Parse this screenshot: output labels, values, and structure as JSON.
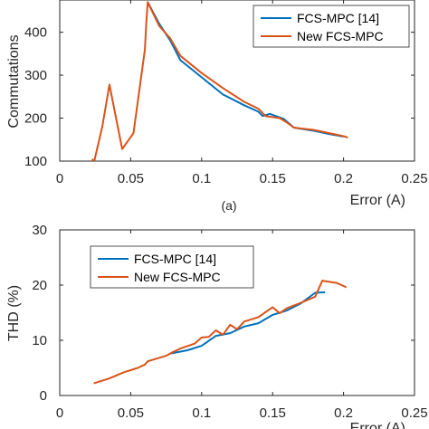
{
  "chart_data": [
    {
      "type": "line",
      "panel_label": "(a)",
      "xlabel": "Error (A)",
      "ylabel": "Commutations",
      "xlim": [
        0,
        0.25
      ],
      "ylim": [
        100,
        475
      ],
      "xticks": [
        "0",
        "0.05",
        "0.1",
        "0.15",
        "0.2",
        "0.25"
      ],
      "yticks": [
        "100",
        "200",
        "300",
        "400"
      ],
      "grid": false,
      "legend_position": "top-right",
      "series": [
        {
          "name": "FCS-MPC [14]",
          "color": "#0072BD",
          "x": [
            0.062,
            0.07,
            0.078,
            0.085,
            0.1,
            0.115,
            0.13,
            0.14,
            0.143,
            0.148,
            0.158,
            0.165,
            0.18,
            0.19,
            0.2
          ],
          "y": [
            470,
            420,
            380,
            335,
            295,
            255,
            230,
            215,
            205,
            210,
            198,
            178,
            170,
            163,
            157
          ]
        },
        {
          "name": "New FCS-MPC",
          "color": "#D95319",
          "x": [
            0.023,
            0.024,
            0.03,
            0.035,
            0.04,
            0.044,
            0.052,
            0.06,
            0.061,
            0.062,
            0.07,
            0.078,
            0.085,
            0.1,
            0.115,
            0.13,
            0.14,
            0.145,
            0.155,
            0.16,
            0.165,
            0.18,
            0.19,
            0.2,
            0.203
          ],
          "y": [
            105,
            95,
            180,
            278,
            195,
            128,
            165,
            360,
            420,
            470,
            415,
            385,
            345,
            305,
            270,
            238,
            222,
            205,
            200,
            190,
            178,
            172,
            165,
            158,
            155
          ]
        }
      ]
    },
    {
      "type": "line",
      "xlabel": "Error (A)",
      "ylabel": "THD (%)",
      "xlim": [
        0,
        0.25
      ],
      "ylim": [
        0,
        30
      ],
      "xticks": [
        "0",
        "0.05",
        "0.1",
        "0.15",
        "0.2",
        "0.25"
      ],
      "yticks": [
        "0",
        "10",
        "20",
        "30"
      ],
      "grid": false,
      "legend_position": "top-left",
      "series": [
        {
          "name": "FCS-MPC [14]",
          "color": "#0072BD",
          "x": [
            0.078,
            0.09,
            0.1,
            0.11,
            0.12,
            0.13,
            0.14,
            0.15,
            0.16,
            0.17,
            0.18,
            0.187
          ],
          "y": [
            7.6,
            8.2,
            9.0,
            10.8,
            11.3,
            12.5,
            13.1,
            14.6,
            15.4,
            16.7,
            18.6,
            18.7
          ]
        },
        {
          "name": "New FCS-MPC",
          "color": "#D95319",
          "x": [
            0.024,
            0.035,
            0.045,
            0.055,
            0.06,
            0.062,
            0.075,
            0.08,
            0.085,
            0.095,
            0.1,
            0.105,
            0.11,
            0.115,
            0.12,
            0.125,
            0.13,
            0.14,
            0.15,
            0.155,
            0.16,
            0.17,
            0.18,
            0.185,
            0.195,
            0.202
          ],
          "y": [
            2.2,
            3.1,
            4.2,
            5.0,
            5.6,
            6.2,
            7.2,
            7.9,
            8.5,
            9.4,
            10.5,
            10.6,
            11.8,
            11.0,
            12.8,
            12.0,
            13.4,
            14.2,
            16.0,
            14.9,
            15.8,
            16.8,
            17.9,
            20.8,
            20.4,
            19.6
          ]
        }
      ]
    }
  ]
}
